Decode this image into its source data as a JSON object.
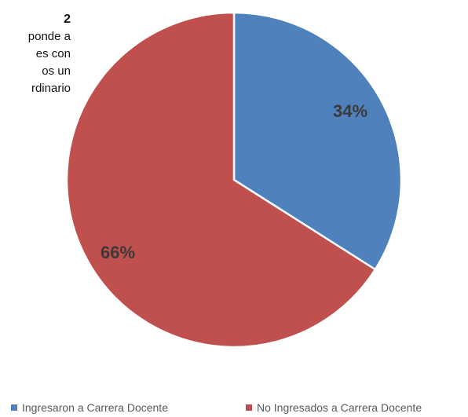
{
  "side_text": {
    "heading": "2",
    "lines": [
      "ponde a",
      "es con",
      "os un",
      "rdinario"
    ]
  },
  "chart_data": {
    "type": "pie",
    "title": "",
    "slices": [
      {
        "label": "Ingresaron a Carrera Docente",
        "value": 34,
        "display": "34%",
        "color": "#4f81bd"
      },
      {
        "label": "No Ingresados a Carrera Docente",
        "value": 66,
        "display": "66%",
        "color": "#c0504d"
      }
    ],
    "start_angle_deg": 0,
    "direction": "clockwise",
    "legend_position": "bottom"
  },
  "legend": {
    "items": [
      {
        "label": "Ingresaron a Carrera Docente",
        "color": "#4f81bd"
      },
      {
        "label": "No Ingresados a Carrera Docente",
        "color": "#c0504d"
      }
    ]
  }
}
